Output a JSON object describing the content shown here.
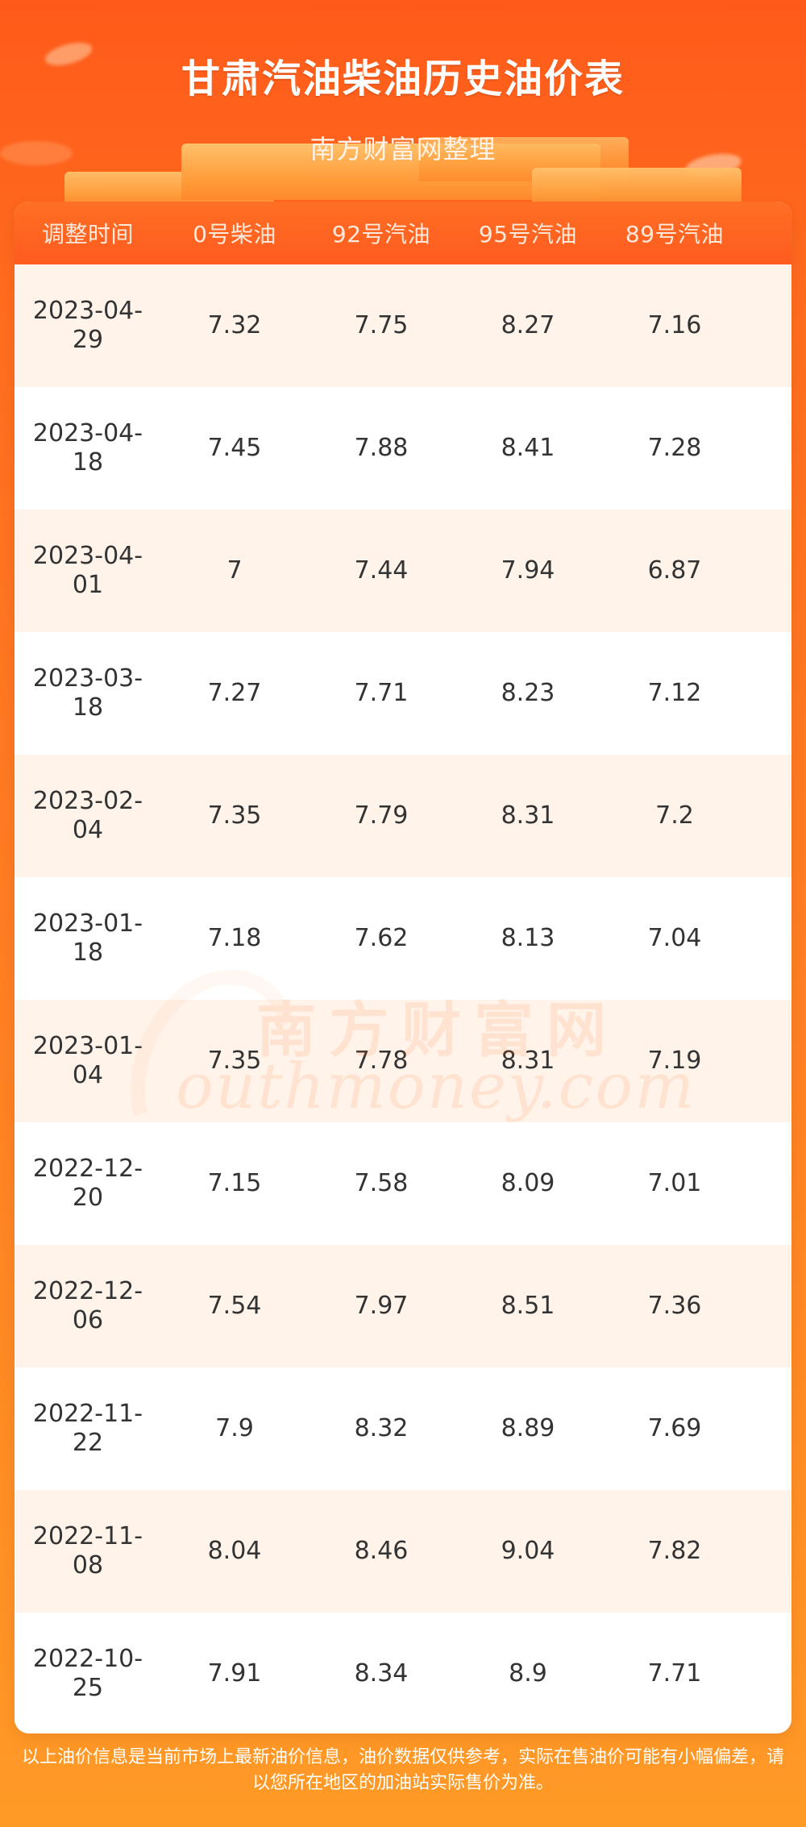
{
  "header": {
    "title": "甘肃汽油柴油历史油价表",
    "subtitle": "南方财富网整理"
  },
  "table": {
    "columns": [
      "调整时间",
      "0号柴油",
      "92号汽油",
      "95号汽油",
      "89号汽油"
    ],
    "rows": [
      {
        "date": "2023-04-\n29",
        "diesel0": "7.32",
        "g92": "7.75",
        "g95": "8.27",
        "g89": "7.16"
      },
      {
        "date": "2023-04-\n18",
        "diesel0": "7.45",
        "g92": "7.88",
        "g95": "8.41",
        "g89": "7.28"
      },
      {
        "date": "2023-04-\n01",
        "diesel0": "7",
        "g92": "7.44",
        "g95": "7.94",
        "g89": "6.87"
      },
      {
        "date": "2023-03-\n18",
        "diesel0": "7.27",
        "g92": "7.71",
        "g95": "8.23",
        "g89": "7.12"
      },
      {
        "date": "2023-02-\n04",
        "diesel0": "7.35",
        "g92": "7.79",
        "g95": "8.31",
        "g89": "7.2"
      },
      {
        "date": "2023-01-\n18",
        "diesel0": "7.18",
        "g92": "7.62",
        "g95": "8.13",
        "g89": "7.04"
      },
      {
        "date": "2023-01-\n04",
        "diesel0": "7.35",
        "g92": "7.78",
        "g95": "8.31",
        "g89": "7.19"
      },
      {
        "date": "2022-12-\n20",
        "diesel0": "7.15",
        "g92": "7.58",
        "g95": "8.09",
        "g89": "7.01"
      },
      {
        "date": "2022-12-\n06",
        "diesel0": "7.54",
        "g92": "7.97",
        "g95": "8.51",
        "g89": "7.36"
      },
      {
        "date": "2022-11-\n22",
        "diesel0": "7.9",
        "g92": "8.32",
        "g95": "8.89",
        "g89": "7.69"
      },
      {
        "date": "2022-11-\n08",
        "diesel0": "8.04",
        "g92": "8.46",
        "g95": "9.04",
        "g89": "7.82"
      },
      {
        "date": "2022-10-\n25",
        "diesel0": "7.91",
        "g92": "8.34",
        "g95": "8.9",
        "g89": "7.71"
      }
    ]
  },
  "watermark": {
    "cn": "南方财富网",
    "en": "outhmoney.com"
  },
  "footer": {
    "note": "以上油价信息是当前市场上最新油价信息，油价数据仅供参考，实际在售油价可能有小幅偏差，请以您所在地区的加油站实际售价为准。"
  }
}
